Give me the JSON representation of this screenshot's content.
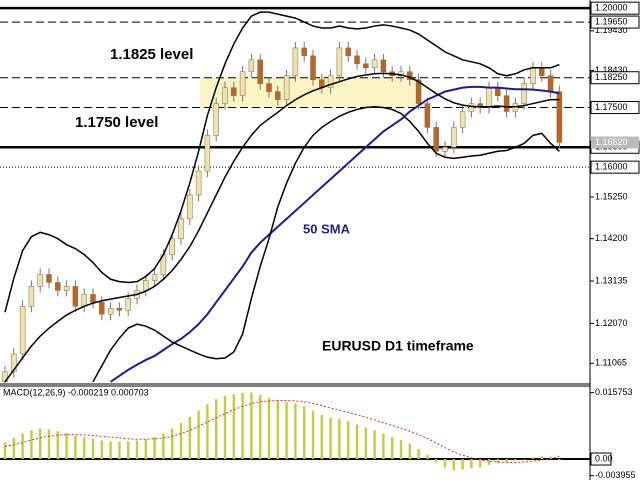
{
  "chart_data": {
    "type": "candlestick",
    "open": [
      1.106,
      1.1085,
      1.113,
      1.125,
      1.13,
      1.133,
      1.131,
      1.129,
      1.13,
      1.125,
      1.128,
      1.126,
      1.123,
      1.1245,
      1.124,
      1.127,
      1.129,
      1.1315,
      1.133,
      1.138,
      1.142,
      1.147,
      1.153,
      1.159,
      1.168,
      1.176,
      1.18,
      1.178,
      1.184,
      1.187,
      1.181,
      1.179,
      1.177,
      1.183,
      1.19,
      1.188,
      1.182,
      1.18,
      1.183,
      1.19,
      1.188,
      1.186,
      1.185,
      1.187,
      1.184,
      1.183,
      1.184,
      1.182,
      1.176,
      1.17,
      1.164,
      1.165,
      1.17,
      1.174,
      1.176,
      1.175,
      1.18,
      1.178,
      1.174,
      1.176,
      1.181,
      1.185,
      1.183,
      1.179
    ],
    "high": [
      1.11,
      1.1145,
      1.1265,
      1.1315,
      1.1345,
      1.1345,
      1.1325,
      1.1315,
      1.1315,
      1.1295,
      1.1295,
      1.1275,
      1.126,
      1.126,
      1.1285,
      1.1305,
      1.133,
      1.1345,
      1.1395,
      1.1435,
      1.1485,
      1.1545,
      1.1605,
      1.1695,
      1.1775,
      1.1815,
      1.1815,
      1.1855,
      1.1885,
      1.1885,
      1.1825,
      1.1805,
      1.1845,
      1.1915,
      1.1915,
      1.1895,
      1.1835,
      1.1845,
      1.1915,
      1.1915,
      1.1895,
      1.1875,
      1.1885,
      1.1885,
      1.1855,
      1.1855,
      1.1855,
      1.1835,
      1.1775,
      1.1715,
      1.1665,
      1.1715,
      1.1755,
      1.1775,
      1.1775,
      1.1815,
      1.1815,
      1.1795,
      1.1775,
      1.1825,
      1.1865,
      1.1865,
      1.1845,
      1.1805
    ],
    "low": [
      1.1045,
      1.107,
      1.1115,
      1.1235,
      1.1285,
      1.1295,
      1.1275,
      1.1275,
      1.1235,
      1.1235,
      1.1245,
      1.1215,
      1.1215,
      1.1225,
      1.1225,
      1.1255,
      1.1275,
      1.13,
      1.1315,
      1.1365,
      1.1405,
      1.1455,
      1.1515,
      1.1575,
      1.1665,
      1.1745,
      1.1765,
      1.1765,
      1.1825,
      1.1795,
      1.1775,
      1.1755,
      1.1755,
      1.1815,
      1.1865,
      1.1805,
      1.1785,
      1.1785,
      1.1815,
      1.1865,
      1.1845,
      1.1835,
      1.1835,
      1.1825,
      1.1815,
      1.1815,
      1.1805,
      1.1745,
      1.1685,
      1.1625,
      1.1625,
      1.1635,
      1.1685,
      1.1725,
      1.1735,
      1.1735,
      1.1765,
      1.1725,
      1.1725,
      1.1745,
      1.1795,
      1.1815,
      1.1775,
      1.1647
    ],
    "close": [
      1.1085,
      1.113,
      1.125,
      1.13,
      1.133,
      1.131,
      1.129,
      1.13,
      1.125,
      1.128,
      1.126,
      1.123,
      1.1245,
      1.124,
      1.127,
      1.129,
      1.1315,
      1.133,
      1.138,
      1.142,
      1.147,
      1.153,
      1.159,
      1.168,
      1.176,
      1.18,
      1.178,
      1.184,
      1.187,
      1.181,
      1.179,
      1.177,
      1.183,
      1.19,
      1.188,
      1.182,
      1.18,
      1.183,
      1.19,
      1.188,
      1.186,
      1.185,
      1.187,
      1.184,
      1.183,
      1.184,
      1.182,
      1.176,
      1.17,
      1.164,
      1.165,
      1.17,
      1.174,
      1.176,
      1.175,
      1.18,
      1.178,
      1.174,
      1.176,
      1.181,
      1.185,
      1.183,
      1.179,
      1.1662
    ],
    "up_color": "#efe2b0",
    "down_color": "#b8652a",
    "wick_color": "#777777",
    "ylim": [
      1.1057,
      1.2013
    ],
    "yticks": [
      {
        "value": 1.1943,
        "label": "1.19430"
      },
      {
        "value": 1.1843,
        "label": "1.18430"
      },
      {
        "value": 1.1525,
        "label": "1.15250"
      },
      {
        "value": 1.142,
        "label": "1.14200"
      },
      {
        "value": 1.13135,
        "label": "1.13135"
      },
      {
        "value": 1.1207,
        "label": "1.12070"
      },
      {
        "value": 1.11065,
        "label": "1.11065"
      }
    ],
    "grid": false,
    "levels": [
      {
        "value": 1.2,
        "label": "1.20000",
        "style": "solid"
      },
      {
        "value": 1.1965,
        "label": "1.19650",
        "style": "dashed"
      },
      {
        "value": 1.1825,
        "label": "1.18250",
        "style": "dashed"
      },
      {
        "value": 1.175,
        "label": "1.17500",
        "style": "dashed"
      },
      {
        "value": 1.165,
        "label": "1.16500",
        "style": "solid"
      },
      {
        "value": 1.16,
        "label": "1.16000",
        "style": "dotted"
      }
    ],
    "current_price": {
      "value": 1.1662,
      "label": "1.16620"
    },
    "zone_color": "#faf3c4",
    "lines": [
      {
        "color": "#1a1f8c",
        "width": 2,
        "values": [
          null,
          null,
          null,
          null,
          null,
          null,
          null,
          null,
          null,
          null,
          null,
          null,
          1.106,
          1.1075,
          1.109,
          1.1103,
          1.1115,
          1.1125,
          1.114,
          1.1155,
          1.1168,
          1.1185,
          1.1205,
          1.123,
          1.126,
          1.129,
          1.132,
          1.135,
          1.1385,
          1.141,
          1.143,
          1.145,
          1.147,
          1.149,
          1.151,
          1.153,
          1.155,
          1.157,
          1.159,
          1.161,
          1.163,
          1.165,
          1.167,
          1.169,
          1.1705,
          1.172,
          1.174,
          1.1755,
          1.177,
          1.178,
          1.179,
          1.1795,
          1.18,
          1.1802,
          1.1802,
          1.18,
          1.18,
          1.1798,
          1.1796,
          1.1796,
          1.1795,
          1.1793,
          1.179,
          1.1786
        ]
      },
      {
        "color": "#000000",
        "width": 1.5,
        "values": [
          1.1235,
          1.132,
          1.139,
          1.1425,
          1.1436,
          1.143,
          1.142,
          1.1405,
          1.1395,
          1.138,
          1.136,
          1.1335,
          1.1318,
          1.1312,
          1.131,
          1.1312,
          1.1325,
          1.1345,
          1.138,
          1.143,
          1.149,
          1.156,
          1.164,
          1.173,
          1.18,
          1.186,
          1.191,
          1.195,
          1.198,
          1.199,
          1.199,
          1.1985,
          1.198,
          1.1975,
          1.1965,
          1.1955,
          1.195,
          1.195,
          1.1955,
          1.195,
          1.1948,
          1.195,
          1.1955,
          1.1958,
          1.1955,
          1.195,
          1.1945,
          1.1935,
          1.192,
          1.1905,
          1.189,
          1.188,
          1.187,
          1.1865,
          1.186,
          1.185,
          1.1835,
          1.183,
          1.1835,
          1.1845,
          1.185,
          1.185,
          1.185,
          1.1858
        ]
      },
      {
        "color": "#000000",
        "width": 1.5,
        "values": [
          1.106,
          1.109,
          1.112,
          1.115,
          1.1175,
          1.1195,
          1.1212,
          1.1228,
          1.124,
          1.125,
          1.1258,
          1.1264,
          1.1268,
          1.1272,
          1.1276,
          1.128,
          1.1288,
          1.13,
          1.1318,
          1.134,
          1.1368,
          1.14,
          1.144,
          1.1485,
          1.153,
          1.1575,
          1.1615,
          1.165,
          1.168,
          1.1705,
          1.1722,
          1.1738,
          1.1755,
          1.177,
          1.1782,
          1.1792,
          1.18,
          1.1808,
          1.1815,
          1.1822,
          1.1828,
          1.1832,
          1.1835,
          1.1836,
          1.1835,
          1.1832,
          1.1826,
          1.1815,
          1.18,
          1.1785,
          1.1772,
          1.1762,
          1.1756,
          1.1753,
          1.1752,
          1.1752,
          1.1754,
          1.1752,
          1.1752,
          1.1755,
          1.176,
          1.1765,
          1.177,
          1.177
        ]
      },
      {
        "color": "#000000",
        "width": 1.5,
        "values": [
          null,
          null,
          null,
          null,
          null,
          null,
          null,
          null,
          null,
          null,
          1.106,
          1.11,
          1.114,
          1.117,
          1.1195,
          1.1205,
          1.12,
          1.119,
          1.1175,
          1.116,
          1.115,
          1.114,
          1.113,
          1.1122,
          1.1118,
          1.112,
          1.1135,
          1.118,
          1.127,
          1.135,
          1.142,
          1.15,
          1.156,
          1.161,
          1.165,
          1.168,
          1.17,
          1.1715,
          1.1728,
          1.1738,
          1.1745,
          1.175,
          1.1752,
          1.175,
          1.1745,
          1.1735,
          1.1715,
          1.169,
          1.166,
          1.1635,
          1.1625,
          1.1622,
          1.1625,
          1.1628,
          1.163,
          1.1635,
          1.164,
          1.1642,
          1.165,
          1.166,
          1.168,
          1.1685,
          1.166,
          1.164
        ]
      }
    ],
    "annotations": [
      "1.1825 level",
      "1.1750 level",
      "50 SMA",
      "EURUSD D1 timeframe"
    ],
    "macd": {
      "label": "MACD(12,26,9) -0.000219 0.000703",
      "hist_color": "#c2cc3c",
      "signal_color": "#e03020",
      "ylim": [
        -0.0045,
        0.0171
      ],
      "yticks": [
        0.015753,
        {
          "value": 0,
          "label": "0.00"
        },
        -0.003955
      ],
      "histogram": [
        0.004,
        0.005,
        0.006,
        0.0068,
        0.0072,
        0.007,
        0.0066,
        0.0062,
        0.0056,
        0.0052,
        0.0048,
        0.0044,
        0.0042,
        0.0041,
        0.0042,
        0.0044,
        0.0047,
        0.0052,
        0.006,
        0.0072,
        0.0085,
        0.01,
        0.0115,
        0.013,
        0.0142,
        0.015,
        0.0154,
        0.0157,
        0.0158,
        0.0152,
        0.0145,
        0.0138,
        0.0135,
        0.0132,
        0.0125,
        0.0115,
        0.0105,
        0.0098,
        0.0095,
        0.009,
        0.0082,
        0.0075,
        0.0068,
        0.006,
        0.0052,
        0.0045,
        0.0036,
        0.0024,
        0.001,
        -0.0008,
        -0.002,
        -0.0026,
        -0.0025,
        -0.0022,
        -0.002,
        -0.0014,
        -0.001,
        -0.0008,
        -0.0004,
        0.0,
        0.0004,
        0.0007,
        0.0006,
        -0.0002
      ],
      "signal": [
        0.003,
        0.0034,
        0.0039,
        0.0045,
        0.005,
        0.0054,
        0.0057,
        0.0058,
        0.0058,
        0.0057,
        0.0056,
        0.0054,
        0.0052,
        0.005,
        0.0048,
        0.0047,
        0.0047,
        0.0048,
        0.005,
        0.0054,
        0.006,
        0.0068,
        0.0078,
        0.0088,
        0.0098,
        0.0108,
        0.0117,
        0.0125,
        0.0132,
        0.0136,
        0.0138,
        0.0139,
        0.0139,
        0.0138,
        0.0136,
        0.0132,
        0.0127,
        0.0121,
        0.0116,
        0.0111,
        0.0105,
        0.0099,
        0.0093,
        0.0086,
        0.008,
        0.0073,
        0.0066,
        0.0058,
        0.0049,
        0.0038,
        0.0027,
        0.0017,
        0.0009,
        0.0003,
        -0.0002,
        -0.0005,
        -0.0007,
        -0.0008,
        -0.0008,
        -0.0007,
        -0.0005,
        -0.0002,
        0.0,
        0.0007
      ]
    }
  }
}
